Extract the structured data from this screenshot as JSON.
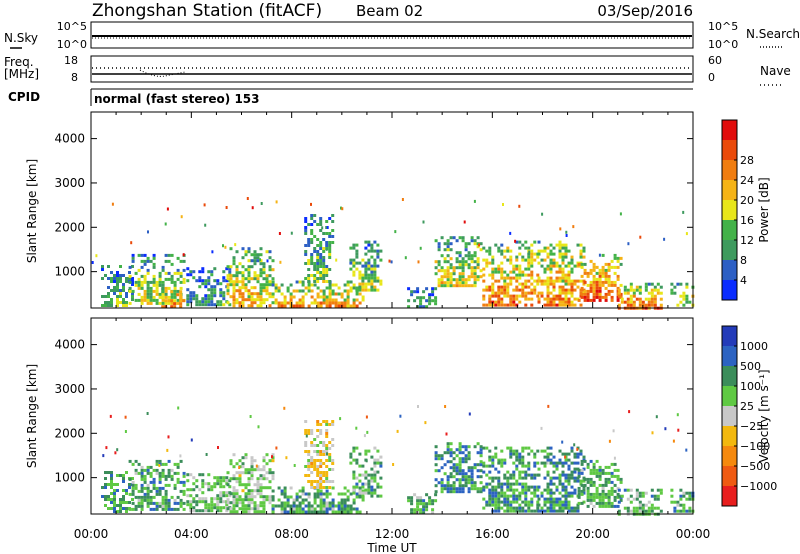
{
  "header": {
    "station": "Zhongshan Station (fitACF)",
    "beam": "Beam 02",
    "date": "03/Sep/2016"
  },
  "top_panels": {
    "nsky_label": "N.Sky",
    "nsearch_label": "N.Search",
    "left_top_tick": "10^5",
    "left_bottom_tick": "10^0",
    "right_top_tick": "10^5",
    "right_bottom_tick": "10^0",
    "freq_label_1": "Freq.",
    "freq_label_2": "[MHz]",
    "freq_top_tick": "18",
    "freq_bottom_tick": "8",
    "nave_label": "Nave",
    "nave_top_tick": "60",
    "nave_bottom_tick": "0",
    "cpid_label": "CPID",
    "cpid_text": "normal (fast stereo) 153"
  },
  "colors": {
    "power": [
      "#0a2cff",
      "#2c5fc4",
      "#3e9a5e",
      "#43b248",
      "#e8e61a",
      "#f5b316",
      "#f07d10",
      "#ea4a0a",
      "#e10c0c"
    ],
    "velocity": [
      "#e81e1e",
      "#ef5a12",
      "#f5890e",
      "#f3b80e",
      "#c8c8c8",
      "#5fc943",
      "#3b8d5a",
      "#2c63c2",
      "#233bb9"
    ]
  },
  "chart_data": [
    {
      "type": "heatmap",
      "name": "power-panel",
      "ylabel": "Slant Range [km]",
      "xlim": [
        0,
        24
      ],
      "ylim": [
        180,
        4600
      ],
      "y_ticks": [
        1000,
        2000,
        3000,
        4000
      ],
      "colorbar": {
        "label": "Power [dB]",
        "ticks": [
          "4",
          "8",
          "12",
          "16",
          "20",
          "24",
          "28"
        ],
        "range": [
          0,
          30
        ]
      },
      "patches": [
        {
          "t0": 0.4,
          "t1": 1.6,
          "r0": 250,
          "r1": 1150,
          "level": 0.35
        },
        {
          "t0": 1.5,
          "t1": 3.7,
          "r0": 250,
          "r1": 1400,
          "level": 0.5
        },
        {
          "t0": 2.8,
          "t1": 3.7,
          "r0": 200,
          "r1": 650,
          "level": 0.85
        },
        {
          "t0": 3.8,
          "t1": 5.5,
          "r0": 250,
          "r1": 1100,
          "level": 0.3
        },
        {
          "t0": 5.4,
          "t1": 7.3,
          "r0": 250,
          "r1": 1550,
          "level": 0.6
        },
        {
          "t0": 7.2,
          "t1": 10.8,
          "r0": 250,
          "r1": 800,
          "level": 0.65
        },
        {
          "t0": 8.5,
          "t1": 9.6,
          "r0": 800,
          "r1": 2300,
          "level": 0.4
        },
        {
          "t0": 10.3,
          "t1": 11.6,
          "r0": 600,
          "r1": 1700,
          "level": 0.45
        },
        {
          "t0": 12.6,
          "t1": 13.7,
          "r0": 200,
          "r1": 650,
          "level": 0.3
        },
        {
          "t0": 13.7,
          "t1": 15.6,
          "r0": 650,
          "r1": 1800,
          "level": 0.55
        },
        {
          "t0": 15.6,
          "t1": 17.8,
          "r0": 250,
          "r1": 1700,
          "level": 0.72
        },
        {
          "t0": 17.8,
          "t1": 19.6,
          "r0": 250,
          "r1": 1700,
          "level": 0.7
        },
        {
          "t0": 19.4,
          "t1": 21.1,
          "r0": 350,
          "r1": 1400,
          "level": 0.82
        },
        {
          "t0": 21.0,
          "t1": 22.7,
          "r0": 200,
          "r1": 750,
          "level": 0.75
        },
        {
          "t0": 23.1,
          "t1": 24.0,
          "r0": 250,
          "r1": 750,
          "level": 0.5
        }
      ]
    },
    {
      "type": "heatmap",
      "name": "velocity-panel",
      "xlabel": "Time UT",
      "ylabel": "Slant Range [km]",
      "xlim": [
        0,
        24
      ],
      "ylim": [
        180,
        4600
      ],
      "x_ticks": [
        "00:00",
        "04:00",
        "08:00",
        "12:00",
        "16:00",
        "20:00",
        "00:00"
      ],
      "y_ticks": [
        1000,
        2000,
        3000,
        4000
      ],
      "colorbar": {
        "label": "Velocity [m s⁻¹]",
        "ticks": [
          "1000",
          "500",
          "100",
          "25",
          "−25",
          "−100",
          "−500",
          "−1000"
        ],
        "range": [
          -1000,
          1000
        ]
      },
      "patches": [
        {
          "t0": 0.4,
          "t1": 1.6,
          "r0": 250,
          "r1": 1150,
          "level": -0.4
        },
        {
          "t0": 1.5,
          "t1": 3.7,
          "r0": 250,
          "r1": 1400,
          "level": -0.35
        },
        {
          "t0": 3.8,
          "t1": 5.5,
          "r0": 250,
          "r1": 1100,
          "level": -0.25
        },
        {
          "t0": 5.4,
          "t1": 7.3,
          "r0": 250,
          "r1": 1550,
          "level": -0.15
        },
        {
          "t0": 7.2,
          "t1": 10.8,
          "r0": 250,
          "r1": 800,
          "level": -0.35
        },
        {
          "t0": 8.5,
          "t1": 9.6,
          "r0": 800,
          "r1": 2300,
          "level": 0.1
        },
        {
          "t0": 10.3,
          "t1": 11.6,
          "r0": 600,
          "r1": 1700,
          "level": -0.3
        },
        {
          "t0": 12.6,
          "t1": 13.7,
          "r0": 200,
          "r1": 650,
          "level": -0.35
        },
        {
          "t0": 13.7,
          "t1": 15.6,
          "r0": 650,
          "r1": 1800,
          "level": -0.45
        },
        {
          "t0": 15.6,
          "t1": 17.8,
          "r0": 250,
          "r1": 1700,
          "level": -0.4
        },
        {
          "t0": 17.8,
          "t1": 19.6,
          "r0": 250,
          "r1": 1700,
          "level": -0.45
        },
        {
          "t0": 19.4,
          "t1": 21.1,
          "r0": 350,
          "r1": 1400,
          "level": -0.35
        },
        {
          "t0": 21.0,
          "t1": 22.7,
          "r0": 200,
          "r1": 750,
          "level": -0.3
        },
        {
          "t0": 23.1,
          "t1": 24.0,
          "r0": 250,
          "r1": 750,
          "level": -0.35
        }
      ]
    }
  ]
}
